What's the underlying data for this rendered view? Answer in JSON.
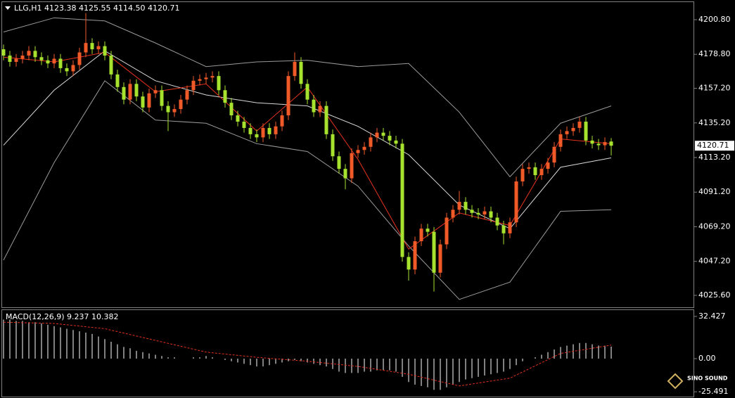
{
  "chart_data": [
    {
      "type": "candlestick",
      "title": "LLG,H1  4123.38 4125.55 4114.50 4120.71",
      "up_color": "#f05a28",
      "down_color": "#a6e22e",
      "open": [
        4182,
        4178,
        4174,
        4176,
        4178,
        4181,
        4177,
        4175,
        4173,
        4176,
        4170,
        4168,
        4172,
        4180,
        4186,
        4182,
        4184,
        4178,
        4166,
        4158,
        4150,
        4160,
        4152,
        4145,
        4154,
        4156,
        4146,
        4142,
        4144,
        4150,
        4156,
        4162,
        4163,
        4164,
        4165,
        4156,
        4148,
        4140,
        4136,
        4132,
        4128,
        4126,
        4132,
        4128,
        4133,
        4140,
        4165,
        4174,
        4160,
        4150,
        4142,
        4146,
        4128,
        4114,
        4106,
        4100,
        4116,
        4118,
        4120,
        4126,
        4129,
        4127,
        4124,
        4122,
        4050,
        4042,
        4060,
        4068,
        4066,
        4040,
        4058,
        4075,
        4080,
        4085,
        4080,
        4078,
        4077,
        4079,
        4075,
        4070,
        4065,
        4072,
        4098,
        4106,
        4107,
        4102,
        4106,
        4110,
        4120,
        4128,
        4130,
        4132,
        4136,
        4124,
        4122,
        4121,
        4123.38
      ],
      "high": [
        4185,
        4181,
        4179,
        4181,
        4184,
        4184,
        4180,
        4178,
        4179,
        4179,
        4173,
        4175,
        4183,
        4205,
        4189,
        4187,
        4187,
        4181,
        4169,
        4161,
        4163,
        4163,
        4155,
        4157,
        4159,
        4159,
        4149,
        4147,
        4153,
        4159,
        4165,
        4166,
        4167,
        4168,
        4168,
        4159,
        4151,
        4143,
        4139,
        4135,
        4131,
        4135,
        4135,
        4136,
        4143,
        4168,
        4180,
        4177,
        4163,
        4153,
        4149,
        4149,
        4131,
        4117,
        4109,
        4119,
        4121,
        4123,
        4129,
        4132,
        4132,
        4130,
        4127,
        4125,
        4053,
        4063,
        4071,
        4071,
        4069,
        4061,
        4078,
        4083,
        4092,
        4088,
        4083,
        4081,
        4082,
        4082,
        4078,
        4073,
        4075,
        4101,
        4109,
        4110,
        4110,
        4109,
        4113,
        4123,
        4131,
        4133,
        4135,
        4139,
        4139,
        4127,
        4125,
        4126,
        4125.55
      ],
      "low": [
        4175,
        4171,
        4171,
        4173,
        4175,
        4174,
        4172,
        4170,
        4170,
        4167,
        4165,
        4165,
        4169,
        4177,
        4179,
        4179,
        4175,
        4163,
        4155,
        4147,
        4147,
        4149,
        4142,
        4142,
        4151,
        4143,
        4130,
        4139,
        4141,
        4147,
        4153,
        4159,
        4160,
        4161,
        4153,
        4145,
        4137,
        4133,
        4129,
        4125,
        4123,
        4123,
        4125,
        4125,
        4130,
        4137,
        4162,
        4157,
        4147,
        4139,
        4139,
        4125,
        4111,
        4103,
        4093,
        4097,
        4113,
        4115,
        4117,
        4123,
        4124,
        4121,
        4119,
        4047,
        4035,
        4039,
        4057,
        4063,
        4028,
        4037,
        4055,
        4072,
        4077,
        4077,
        4075,
        4074,
        4074,
        4072,
        4067,
        4058,
        4062,
        4069,
        4095,
        4103,
        4099,
        4099,
        4103,
        4107,
        4117,
        4125,
        4127,
        4129,
        4121,
        4119,
        4118,
        4118,
        4114.5
      ],
      "close": [
        4178,
        4174,
        4176,
        4178,
        4181,
        4177,
        4175,
        4173,
        4176,
        4170,
        4168,
        4172,
        4180,
        4186,
        4182,
        4184,
        4178,
        4166,
        4158,
        4150,
        4160,
        4152,
        4145,
        4154,
        4156,
        4146,
        4142,
        4144,
        4150,
        4156,
        4162,
        4163,
        4164,
        4165,
        4156,
        4148,
        4140,
        4136,
        4132,
        4128,
        4126,
        4132,
        4128,
        4133,
        4140,
        4165,
        4174,
        4160,
        4150,
        4142,
        4146,
        4128,
        4114,
        4106,
        4100,
        4116,
        4118,
        4120,
        4126,
        4129,
        4127,
        4124,
        4122,
        4050,
        4042,
        4060,
        4068,
        4066,
        4040,
        4058,
        4075,
        4080,
        4085,
        4080,
        4078,
        4077,
        4079,
        4075,
        4070,
        4065,
        4072,
        4098,
        4106,
        4107,
        4102,
        4106,
        4110,
        4120,
        4128,
        4130,
        4132,
        4136,
        4124,
        4122,
        4121,
        4123,
        4120.71
      ],
      "overlays": [
        {
          "color": "#9a9a9a",
          "x": [
            0,
            8,
            16,
            24,
            32,
            40,
            48,
            56,
            64,
            72,
            80,
            88,
            96
          ],
          "values": [
            4193,
            4202,
            4200,
            4186,
            4171,
            4174,
            4175,
            4171,
            4173,
            4142,
            4101,
            4135,
            4146
          ]
        },
        {
          "color": "#d8d8d8",
          "x": [
            0,
            8,
            16,
            24,
            32,
            40,
            48,
            56,
            64,
            72,
            80,
            88,
            96
          ],
          "values": [
            4121,
            4156,
            4181,
            4162,
            4153,
            4148,
            4146,
            4133,
            4115,
            4083,
            4068,
            4107,
            4113
          ]
        },
        {
          "color": "#9a9a9a",
          "x": [
            0,
            8,
            16,
            24,
            32,
            40,
            48,
            56,
            64,
            72,
            80,
            88,
            96
          ],
          "values": [
            4048,
            4110,
            4162,
            4137,
            4135,
            4122,
            4117,
            4095,
            4057,
            4023,
            4034,
            4079,
            4080
          ]
        },
        {
          "color": "#e8321e",
          "x": [
            0,
            8,
            16,
            24,
            32,
            40,
            48,
            56,
            64,
            72,
            80,
            88,
            96
          ],
          "values": [
            4177,
            4174,
            4180,
            4155,
            4160,
            4130,
            4158,
            4112,
            4055,
            4078,
            4070,
            4125,
            4122
          ]
        }
      ],
      "current_price": 4120.71,
      "ylim": [
        4017.56,
        4213.32
      ],
      "yticks": [
        {
          "value": 4200.8,
          "label": "4200.80"
        },
        {
          "value": 4178.8,
          "label": "4178.80"
        },
        {
          "value": 4157.2,
          "label": "4157.20"
        },
        {
          "value": 4135.2,
          "label": "4135.20"
        },
        {
          "value": 4113.2,
          "label": "4113.20"
        },
        {
          "value": 4091.2,
          "label": "4091.20"
        },
        {
          "value": 4069.2,
          "label": "4069.20"
        },
        {
          "value": 4047.2,
          "label": "4047.20"
        },
        {
          "value": 4025.6,
          "label": "4025.60"
        }
      ]
    },
    {
      "type": "macd",
      "title": "MACD(12,26,9) 9.237 10.382",
      "histogram": {
        "color": "#ffffff",
        "values": [
          30,
          30,
          29,
          29,
          28,
          28,
          27,
          26,
          25,
          24,
          23,
          22,
          21,
          20,
          19,
          17,
          15,
          13,
          11,
          9,
          8,
          6,
          5,
          4,
          3,
          2,
          1,
          1,
          0,
          0,
          1,
          1,
          2,
          1,
          0,
          -1,
          -2,
          -3,
          -4,
          -5,
          -6,
          -6,
          -5,
          -4,
          -3,
          -2,
          -1,
          -2,
          -3,
          -4,
          -5,
          -6,
          -8,
          -10,
          -11,
          -11,
          -11,
          -10,
          -10,
          -9,
          -9,
          -9,
          -10,
          -14,
          -18,
          -20,
          -21,
          -22,
          -24,
          -24,
          -22,
          -20,
          -18,
          -16,
          -15,
          -14,
          -13,
          -12,
          -11,
          -10,
          -8,
          -5,
          -2,
          0,
          1,
          3,
          5,
          7,
          9,
          10,
          11,
          12,
          12,
          11,
          10,
          10,
          9.237
        ]
      },
      "signal": {
        "color": "#e03020",
        "x": [
          0,
          8,
          16,
          24,
          32,
          40,
          48,
          56,
          64,
          72,
          80,
          88,
          96
        ],
        "values": [
          28,
          27,
          23,
          14,
          5,
          1,
          -2,
          -6,
          -12,
          -21,
          -15,
          4,
          10.382
        ]
      },
      "ylim": [
        -30.27,
        37.83
      ],
      "yticks": [
        32.427,
        {
          "value": 0,
          "label": "0.00"
        },
        -25.491
      ]
    }
  ],
  "watermark": "SINO SOUND"
}
